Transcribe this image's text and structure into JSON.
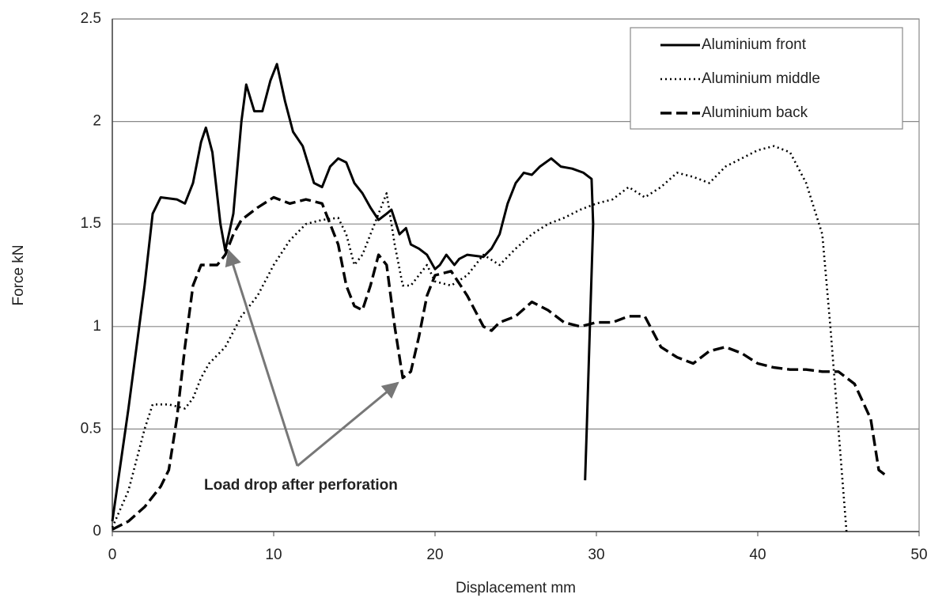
{
  "chart_data": {
    "type": "line",
    "xlabel": "Displacement mm",
    "ylabel": "Force kN",
    "annotation": "Load drop after perforation",
    "xlim": [
      0,
      50
    ],
    "xticks": [
      0,
      10,
      20,
      30,
      40,
      50
    ],
    "ylim": [
      0,
      2.5
    ],
    "yticks": [
      0,
      0.5,
      1,
      1.5,
      2,
      2.5
    ],
    "grid": true,
    "legend": "upper right",
    "series": [
      {
        "name": "Aluminium front",
        "color": "#000000",
        "style": "solid",
        "x": [
          0,
          1,
          2,
          2.5,
          3,
          4,
          4.5,
          5,
          5.5,
          5.8,
          6.2,
          6.7,
          7,
          7.5,
          8,
          8.3,
          8.8,
          9.3,
          9.8,
          10.2,
          10.7,
          11.2,
          11.8,
          12.5,
          13,
          13.5,
          14,
          14.5,
          15,
          15.5,
          16,
          16.5,
          17,
          17.3,
          17.8,
          18.2,
          18.5,
          19,
          19.5,
          20,
          20.3,
          20.7,
          21.2,
          21.5,
          22,
          23,
          23.5,
          24,
          24.5,
          25,
          25.5,
          26,
          26.5,
          27.2,
          27.8,
          28.5,
          29.2,
          29.7,
          29.8,
          29.6,
          29.4,
          29.3
        ],
        "values": [
          0.05,
          0.6,
          1.2,
          1.55,
          1.63,
          1.62,
          1.6,
          1.7,
          1.9,
          1.97,
          1.85,
          1.5,
          1.37,
          1.55,
          2.0,
          2.18,
          2.05,
          2.05,
          2.2,
          2.28,
          2.1,
          1.95,
          1.88,
          1.7,
          1.68,
          1.78,
          1.82,
          1.8,
          1.7,
          1.65,
          1.58,
          1.52,
          1.55,
          1.57,
          1.45,
          1.48,
          1.4,
          1.38,
          1.35,
          1.28,
          1.3,
          1.35,
          1.3,
          1.33,
          1.35,
          1.34,
          1.38,
          1.45,
          1.6,
          1.7,
          1.75,
          1.74,
          1.78,
          1.82,
          1.78,
          1.77,
          1.75,
          1.72,
          1.5,
          1.0,
          0.5,
          0.25
        ]
      },
      {
        "name": "Aluminium middle",
        "color": "#000000",
        "style": "dotted",
        "x": [
          0,
          1,
          2,
          2.5,
          3.5,
          4.5,
          5,
          5.5,
          6,
          7,
          8,
          9,
          10,
          11,
          12,
          13,
          14,
          14.5,
          15,
          15.5,
          16,
          16.5,
          17,
          17.5,
          18,
          18.5,
          19,
          19.5,
          20,
          21,
          22,
          23,
          24,
          25,
          26,
          27,
          28,
          29,
          30,
          31,
          32,
          33,
          34,
          35,
          36,
          37,
          38,
          39,
          40,
          41,
          42,
          43,
          44,
          44.5,
          45,
          45.5
        ],
        "values": [
          0.02,
          0.2,
          0.5,
          0.62,
          0.62,
          0.6,
          0.65,
          0.75,
          0.82,
          0.9,
          1.05,
          1.15,
          1.3,
          1.42,
          1.5,
          1.52,
          1.53,
          1.45,
          1.3,
          1.35,
          1.45,
          1.55,
          1.65,
          1.4,
          1.2,
          1.2,
          1.25,
          1.3,
          1.22,
          1.2,
          1.25,
          1.35,
          1.3,
          1.38,
          1.45,
          1.5,
          1.53,
          1.57,
          1.6,
          1.62,
          1.68,
          1.63,
          1.68,
          1.75,
          1.73,
          1.7,
          1.78,
          1.82,
          1.86,
          1.88,
          1.85,
          1.7,
          1.45,
          1.0,
          0.5,
          0.0
        ]
      },
      {
        "name": "Aluminium back",
        "color": "#000000",
        "style": "dashed",
        "x": [
          0,
          1,
          2,
          3,
          3.5,
          4,
          4.5,
          5,
          5.5,
          6.5,
          7,
          7.5,
          8,
          9,
          10,
          11,
          12,
          13,
          14,
          14.5,
          15,
          15.5,
          16,
          16.5,
          17,
          17.5,
          18,
          18.5,
          19,
          19.5,
          20,
          21,
          22,
          23,
          23.5,
          24,
          25,
          26,
          27,
          28,
          29,
          30,
          31,
          32,
          33,
          34,
          35,
          36,
          37,
          38,
          39,
          40,
          41,
          42,
          43,
          44,
          45,
          46,
          47,
          47.5,
          48
        ],
        "values": [
          0.01,
          0.05,
          0.12,
          0.22,
          0.3,
          0.55,
          0.9,
          1.2,
          1.3,
          1.3,
          1.35,
          1.45,
          1.52,
          1.58,
          1.63,
          1.6,
          1.62,
          1.6,
          1.4,
          1.2,
          1.1,
          1.08,
          1.2,
          1.35,
          1.3,
          1.0,
          0.75,
          0.78,
          0.95,
          1.15,
          1.25,
          1.27,
          1.15,
          1.0,
          0.98,
          1.02,
          1.05,
          1.12,
          1.08,
          1.02,
          1.0,
          1.02,
          1.02,
          1.05,
          1.05,
          0.9,
          0.85,
          0.82,
          0.88,
          0.9,
          0.87,
          0.82,
          0.8,
          0.79,
          0.79,
          0.78,
          0.78,
          0.72,
          0.55,
          0.3,
          0.27
        ]
      }
    ]
  }
}
